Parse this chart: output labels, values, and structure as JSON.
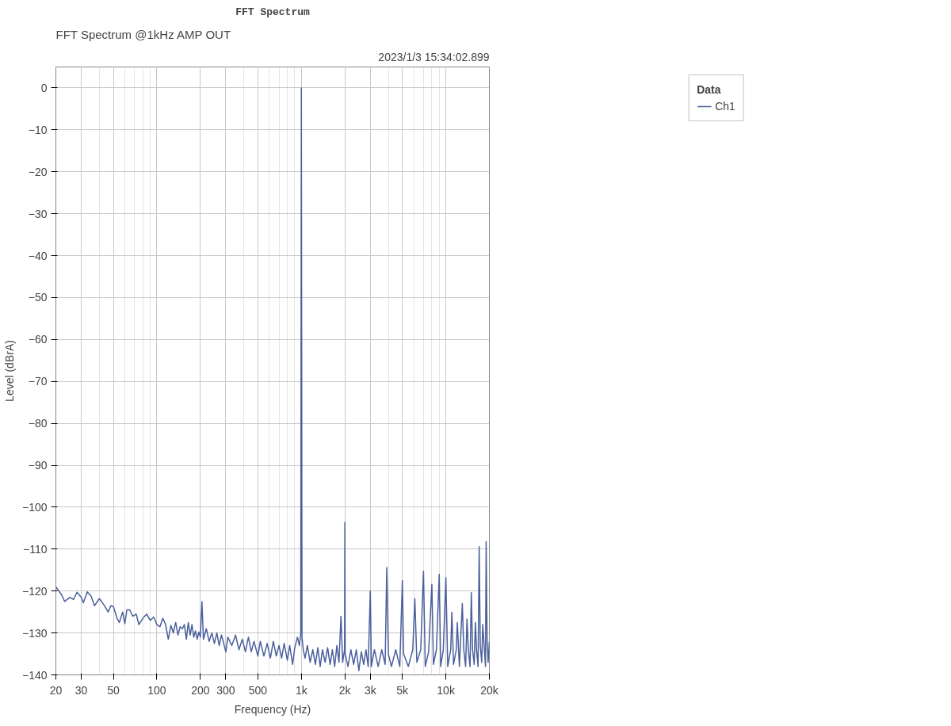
{
  "chart_data": {
    "type": "line",
    "title": "FFT Spectrum",
    "subtitle": "FFT Spectrum @1kHz AMP OUT",
    "xlabel": "Frequency (Hz)",
    "ylabel": "Level (dBrA)",
    "legend_title": "Data",
    "annotations": [
      "2023/1/3 15:34:02.899"
    ],
    "log": "x",
    "grid": true,
    "legend": "top right",
    "marker": "none",
    "line_style": "solid",
    "xlim": [
      20,
      20000
    ],
    "ylim": [
      -140,
      5
    ],
    "xticks": [
      20,
      30,
      50,
      100,
      200,
      300,
      500,
      {
        "value": 1000,
        "label": "1k"
      },
      {
        "value": 2000,
        "label": "2k"
      },
      {
        "value": 3000,
        "label": "3k"
      },
      {
        "value": 5000,
        "label": "5k"
      },
      {
        "value": 10000,
        "label": "10k"
      },
      {
        "value": 20000,
        "label": "20k"
      }
    ],
    "yticks": [
      0,
      -10,
      -20,
      -30,
      -40,
      -50,
      -60,
      -70,
      -80,
      -90,
      -100,
      -110,
      -120,
      -130,
      -140
    ],
    "x": [
      20,
      22,
      23,
      25,
      26.5,
      28,
      30,
      31,
      33,
      35,
      37,
      40,
      43,
      46,
      48,
      50,
      53,
      55,
      58,
      60,
      62,
      65,
      68,
      72,
      75,
      80,
      85,
      90,
      95,
      100,
      105,
      110,
      115,
      120,
      125,
      130,
      135,
      140,
      145,
      150,
      155,
      160,
      165,
      170,
      175,
      180,
      185,
      190,
      195,
      200,
      205,
      210,
      220,
      230,
      240,
      250,
      260,
      270,
      280,
      290,
      300,
      310,
      330,
      350,
      370,
      390,
      410,
      430,
      450,
      470,
      500,
      520,
      550,
      580,
      610,
      640,
      670,
      700,
      730,
      760,
      800,
      830,
      870,
      900,
      940,
      970,
      990,
      1000,
      1010,
      1030,
      1060,
      1100,
      1150,
      1200,
      1250,
      1300,
      1350,
      1400,
      1460,
      1520,
      1580,
      1640,
      1700,
      1760,
      1820,
      1880,
      1930,
      1990,
      2000,
      2010,
      2100,
      2200,
      2300,
      2400,
      2500,
      2600,
      2700,
      2800,
      2900,
      3000,
      3050,
      3200,
      3400,
      3600,
      3800,
      3900,
      4000,
      4200,
      4500,
      4800,
      5000,
      5100,
      5500,
      5900,
      6100,
      6300,
      6700,
      7000,
      7200,
      7600,
      8000,
      8200,
      8600,
      9000,
      9200,
      9600,
      10000,
      10300,
      10800,
      11000,
      11300,
      11800,
      12000,
      12400,
      13000,
      13300,
      13700,
      14000,
      14300,
      14700,
      15000,
      15300,
      15700,
      16000,
      16300,
      16700,
      17000,
      17300,
      17700,
      18000,
      18400,
      18800,
      19000,
      19300,
      19600,
      20000
    ],
    "series": [
      {
        "name": "Ch1",
        "color": "#4a5f9c",
        "values": [
          -119,
          -121,
          -122.5,
          -121.5,
          -122,
          -120.3,
          -121.5,
          -122.8,
          -120.2,
          -121.2,
          -123.5,
          -121.8,
          -123.3,
          -125,
          -123.5,
          -123.7,
          -126.5,
          -127.5,
          -125,
          -127.8,
          -124.5,
          -124.5,
          -126,
          -125.5,
          -128,
          -126.5,
          -125.5,
          -127,
          -126.2,
          -128,
          -128.5,
          -126.5,
          -128,
          -131.5,
          -128.2,
          -130,
          -127.5,
          -130.5,
          -128.5,
          -129,
          -128,
          -131.5,
          -127.5,
          -130.5,
          -128,
          -131,
          -129.5,
          -131.5,
          -129.8,
          -131,
          -122.5,
          -131.5,
          -129,
          -132,
          -130,
          -132.5,
          -130,
          -133,
          -130.5,
          -132.5,
          -134.5,
          -131,
          -133,
          -130.5,
          -134,
          -131.5,
          -134.5,
          -131,
          -134.5,
          -132,
          -135.5,
          -132,
          -135.5,
          -132.5,
          -136,
          -132,
          -135.5,
          -133,
          -136,
          -132.5,
          -136.5,
          -133,
          -137.5,
          -133.5,
          -131,
          -133,
          -130,
          0,
          -131,
          -134,
          -136,
          -133,
          -137,
          -134,
          -137.5,
          -133.5,
          -138,
          -134,
          -137,
          -133.5,
          -137.5,
          -134,
          -138,
          -133,
          -137,
          -126,
          -137,
          -134,
          -103.6,
          -135,
          -138,
          -134,
          -137.5,
          -134,
          -139,
          -134.5,
          -137.5,
          -134,
          -138,
          -120,
          -138,
          -134,
          -138,
          -134,
          -137.5,
          -114.4,
          -135,
          -138,
          -134,
          -138,
          -117.5,
          -135,
          -138,
          -134,
          -121.8,
          -137,
          -134,
          -115.3,
          -138,
          -134.5,
          -118.4,
          -137.5,
          -134,
          -116,
          -138,
          -134,
          -116.8,
          -138,
          -134,
          -125,
          -137.5,
          -134,
          -127.5,
          -138,
          -123,
          -134,
          -138,
          -126.7,
          -134,
          -138,
          -120.4,
          -134,
          -137.5,
          -127.5,
          -134,
          -138,
          -109.4,
          -133,
          -137,
          -128,
          -133,
          -138,
          -108.2,
          -132,
          -137,
          -132
        ]
      }
    ]
  }
}
